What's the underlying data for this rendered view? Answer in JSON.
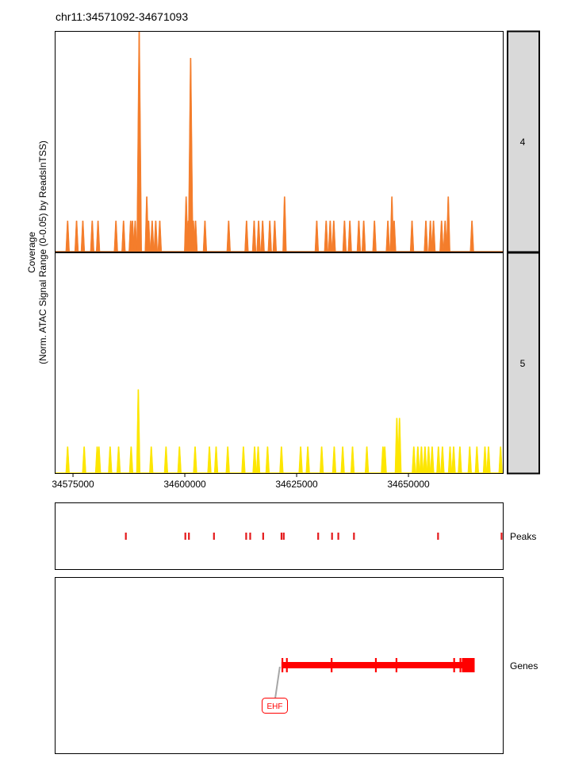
{
  "title": "chr11:34571092-34671093",
  "y_axis_label_line1": "Coverage",
  "y_axis_label_line2": "(Norm. ATAC Signal Range (0-0.05) by ReadsInTSS)",
  "tracks": {
    "peaks": "Peaks",
    "genes": "Genes"
  },
  "colors": {
    "group4": "#F47D2B",
    "group5": "#FDE600",
    "peaks": "#E41A1C",
    "gene": "#FF0000",
    "strip_bg": "#D9D9D9"
  },
  "chart_data": {
    "type": "area",
    "x_range": [
      34571092,
      34671093
    ],
    "x_ticks": [
      34575000,
      34600000,
      34625000,
      34650000
    ],
    "x_tick_labels": [
      "34575000",
      "34600000",
      "34625000",
      "34650000"
    ],
    "y_range": [
      0,
      1
    ],
    "groups": [
      {
        "name": "4",
        "peaks": [
          [
            34573800,
            0.14
          ],
          [
            34575800,
            0.14
          ],
          [
            34577200,
            0.14
          ],
          [
            34579300,
            0.14
          ],
          [
            34580600,
            0.14
          ],
          [
            34584600,
            0.14
          ],
          [
            34586300,
            0.14
          ],
          [
            34587900,
            0.14
          ],
          [
            34588300,
            0.14
          ],
          [
            34588900,
            0.14
          ],
          [
            34589800,
            1.0
          ],
          [
            34591500,
            0.25
          ],
          [
            34591900,
            0.14
          ],
          [
            34592700,
            0.14
          ],
          [
            34593500,
            0.14
          ],
          [
            34594400,
            0.14
          ],
          [
            34600300,
            0.25
          ],
          [
            34600800,
            0.14
          ],
          [
            34601300,
            0.88
          ],
          [
            34601900,
            0.14
          ],
          [
            34602400,
            0.14
          ],
          [
            34604500,
            0.14
          ],
          [
            34609800,
            0.14
          ],
          [
            34613800,
            0.14
          ],
          [
            34615500,
            0.14
          ],
          [
            34616500,
            0.14
          ],
          [
            34617400,
            0.14
          ],
          [
            34619000,
            0.14
          ],
          [
            34620100,
            0.14
          ],
          [
            34622300,
            0.25
          ],
          [
            34629500,
            0.14
          ],
          [
            34631600,
            0.14
          ],
          [
            34632500,
            0.14
          ],
          [
            34633300,
            0.14
          ],
          [
            34635700,
            0.14
          ],
          [
            34636900,
            0.14
          ],
          [
            34638900,
            0.14
          ],
          [
            34640000,
            0.14
          ],
          [
            34642400,
            0.14
          ],
          [
            34645400,
            0.14
          ],
          [
            34646300,
            0.25
          ],
          [
            34646800,
            0.14
          ],
          [
            34650800,
            0.14
          ],
          [
            34653900,
            0.14
          ],
          [
            34654900,
            0.14
          ],
          [
            34655600,
            0.14
          ],
          [
            34657400,
            0.14
          ],
          [
            34658200,
            0.14
          ],
          [
            34658900,
            0.25
          ],
          [
            34664200,
            0.14
          ]
        ]
      },
      {
        "name": "5",
        "peaks": [
          [
            34573800,
            0.12
          ],
          [
            34577500,
            0.12
          ],
          [
            34580400,
            0.12
          ],
          [
            34580800,
            0.12
          ],
          [
            34583300,
            0.12
          ],
          [
            34585200,
            0.12
          ],
          [
            34588000,
            0.12
          ],
          [
            34589600,
            0.38
          ],
          [
            34592500,
            0.12
          ],
          [
            34595800,
            0.12
          ],
          [
            34598800,
            0.12
          ],
          [
            34602300,
            0.12
          ],
          [
            34605500,
            0.12
          ],
          [
            34607000,
            0.12
          ],
          [
            34609600,
            0.12
          ],
          [
            34613100,
            0.12
          ],
          [
            34615600,
            0.12
          ],
          [
            34616400,
            0.12
          ],
          [
            34618500,
            0.12
          ],
          [
            34621600,
            0.12
          ],
          [
            34625900,
            0.12
          ],
          [
            34627500,
            0.12
          ],
          [
            34630600,
            0.12
          ],
          [
            34633400,
            0.12
          ],
          [
            34635300,
            0.12
          ],
          [
            34637500,
            0.12
          ],
          [
            34640700,
            0.12
          ],
          [
            34644300,
            0.12
          ],
          [
            34644700,
            0.12
          ],
          [
            34647400,
            0.25
          ],
          [
            34648000,
            0.25
          ],
          [
            34651200,
            0.12
          ],
          [
            34652100,
            0.12
          ],
          [
            34652900,
            0.12
          ],
          [
            34653700,
            0.12
          ],
          [
            34654500,
            0.12
          ],
          [
            34655300,
            0.12
          ],
          [
            34656700,
            0.12
          ],
          [
            34657600,
            0.12
          ],
          [
            34659300,
            0.12
          ],
          [
            34660100,
            0.12
          ],
          [
            34661500,
            0.12
          ],
          [
            34663700,
            0.12
          ],
          [
            34665300,
            0.12
          ],
          [
            34667100,
            0.12
          ],
          [
            34667900,
            0.12
          ],
          [
            34670600,
            0.12
          ]
        ]
      }
    ],
    "peak_regions": [
      34586800,
      34600100,
      34600900,
      34606500,
      34613700,
      34614600,
      34617500,
      34621600,
      34622100,
      34629800,
      34632900,
      34634300,
      34637800,
      34656600,
      34670800
    ],
    "gene": {
      "name": "EHF",
      "start": 34621600,
      "end": 34664800,
      "markers": [
        34621800,
        34622800,
        34632800,
        34642700,
        34647300,
        34660200,
        34661600
      ]
    }
  }
}
